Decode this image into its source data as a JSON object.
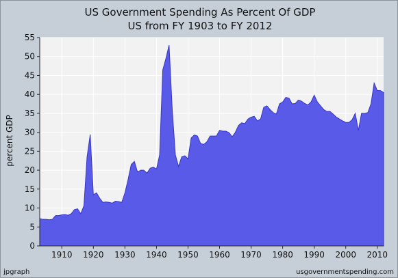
{
  "chart_data": {
    "type": "area",
    "title": "US Government Spending As Percent Of GDP",
    "subtitle": "US from FY 1903 to FY 2012",
    "xlabel": "",
    "ylabel": "percent GDP",
    "xlim": [
      1903,
      2012
    ],
    "ylim": [
      0,
      55
    ],
    "x_ticks": [
      1910,
      1920,
      1930,
      1940,
      1950,
      1960,
      1970,
      1980,
      1990,
      2000,
      2010
    ],
    "y_ticks": [
      0,
      5,
      10,
      15,
      20,
      25,
      30,
      35,
      40,
      45,
      50,
      55
    ],
    "grid": true,
    "legend": "none",
    "fill_color": "#5a5ae8",
    "edge_color": "#3636c6",
    "plot_background": "#f2f2f2",
    "series": [
      {
        "x": [
          1903,
          1904,
          1905,
          1906,
          1907,
          1908,
          1909,
          1910,
          1911,
          1912,
          1913,
          1914,
          1915,
          1916,
          1917,
          1918,
          1919,
          1920,
          1921,
          1922,
          1923,
          1924,
          1925,
          1926,
          1927,
          1928,
          1929,
          1930,
          1931,
          1932,
          1933,
          1934,
          1935,
          1936,
          1937,
          1938,
          1939,
          1940,
          1941,
          1942,
          1943,
          1944,
          1945,
          1946,
          1947,
          1948,
          1949,
          1950,
          1951,
          1952,
          1953,
          1954,
          1955,
          1956,
          1957,
          1958,
          1959,
          1960,
          1961,
          1962,
          1963,
          1964,
          1965,
          1966,
          1967,
          1968,
          1969,
          1970,
          1971,
          1972,
          1973,
          1974,
          1975,
          1976,
          1977,
          1978,
          1979,
          1980,
          1981,
          1982,
          1983,
          1984,
          1985,
          1986,
          1987,
          1988,
          1989,
          1990,
          1991,
          1992,
          1993,
          1994,
          1995,
          1996,
          1997,
          1998,
          1999,
          2000,
          2001,
          2002,
          2003,
          2004,
          2005,
          2006,
          2007,
          2008,
          2009,
          2010,
          2011,
          2012
        ],
        "values": [
          7.2,
          7.0,
          7.0,
          6.9,
          7.0,
          8.0,
          8.0,
          8.2,
          8.3,
          8.1,
          8.5,
          9.6,
          9.8,
          8.5,
          10.6,
          23.5,
          29.4,
          13.5,
          14.0,
          12.6,
          11.5,
          11.6,
          11.5,
          11.3,
          11.8,
          11.7,
          11.5,
          14.0,
          17.5,
          21.5,
          22.3,
          19.5,
          20.0,
          20.0,
          19.2,
          20.5,
          20.8,
          20.3,
          24.0,
          46.5,
          49.5,
          53.0,
          36.0,
          24.0,
          21.0,
          23.5,
          23.8,
          23.0,
          28.5,
          29.3,
          29.0,
          27.0,
          26.8,
          27.5,
          29.0,
          29.0,
          29.0,
          30.5,
          30.3,
          30.3,
          29.9,
          28.8,
          30.0,
          31.8,
          32.5,
          32.3,
          33.5,
          34.0,
          34.2,
          33.0,
          33.5,
          36.6,
          37.0,
          36.0,
          35.2,
          34.8,
          37.5,
          38.0,
          39.2,
          39.0,
          37.5,
          37.6,
          38.5,
          38.2,
          37.6,
          37.2,
          38.0,
          39.8,
          38.0,
          37.0,
          36.0,
          35.5,
          35.5,
          34.8,
          34.0,
          33.5,
          33.0,
          32.6,
          32.6,
          33.3,
          35.0,
          30.5,
          35.0,
          35.0,
          35.2,
          37.5,
          43.0,
          41.0,
          41.0,
          40.5
        ]
      }
    ]
  },
  "credits": {
    "left": "jpgraph",
    "right": "usgovernmentspending.com"
  }
}
